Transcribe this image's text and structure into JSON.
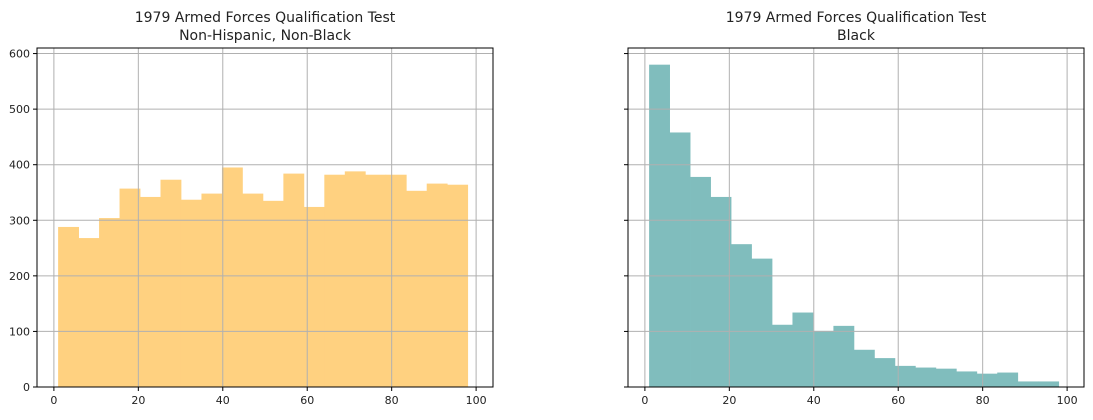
{
  "chart_data": [
    {
      "type": "bar",
      "title": "1979 Armed Forces Qualification Test",
      "subtitle": "Non-Hispanic, Non-Black",
      "xlabel": "",
      "ylabel": "",
      "xlim": [
        -4,
        104
      ],
      "ylim": [
        0,
        610
      ],
      "x_ticks": [
        0,
        20,
        40,
        60,
        80,
        100
      ],
      "y_ticks": [
        0,
        100,
        200,
        300,
        400,
        500,
        600
      ],
      "grid": true,
      "color": "#FFD180",
      "bin_edges": [
        1,
        5.85,
        10.7,
        15.55,
        20.4,
        25.25,
        30.1,
        34.95,
        39.8,
        44.65,
        49.5,
        54.35,
        59.2,
        64.05,
        68.9,
        73.75,
        78.6,
        83.45,
        88.3,
        93.15,
        98
      ],
      "counts": [
        288,
        268,
        304,
        357,
        342,
        373,
        337,
        348,
        395,
        348,
        335,
        384,
        324,
        382,
        388,
        382,
        382,
        353,
        366,
        364
      ]
    },
    {
      "type": "bar",
      "title": "1979 Armed Forces Qualification Test",
      "subtitle": "Black",
      "xlabel": "",
      "ylabel": "",
      "xlim": [
        -4,
        104
      ],
      "ylim": [
        0,
        610
      ],
      "x_ticks": [
        0,
        20,
        40,
        60,
        80,
        100
      ],
      "y_ticks": [
        0,
        100,
        200,
        300,
        400,
        500,
        600
      ],
      "grid": true,
      "color": "#80BDBD",
      "bin_edges": [
        1,
        5.85,
        10.7,
        15.55,
        20.4,
        25.25,
        30.1,
        34.95,
        39.8,
        44.65,
        49.5,
        54.35,
        59.2,
        64.05,
        68.9,
        73.75,
        78.6,
        83.45,
        88.3,
        93.15,
        98
      ],
      "counts": [
        580,
        458,
        378,
        342,
        257,
        231,
        112,
        134,
        101,
        110,
        67,
        52,
        38,
        35,
        33,
        28,
        24,
        26,
        10,
        10
      ]
    }
  ]
}
